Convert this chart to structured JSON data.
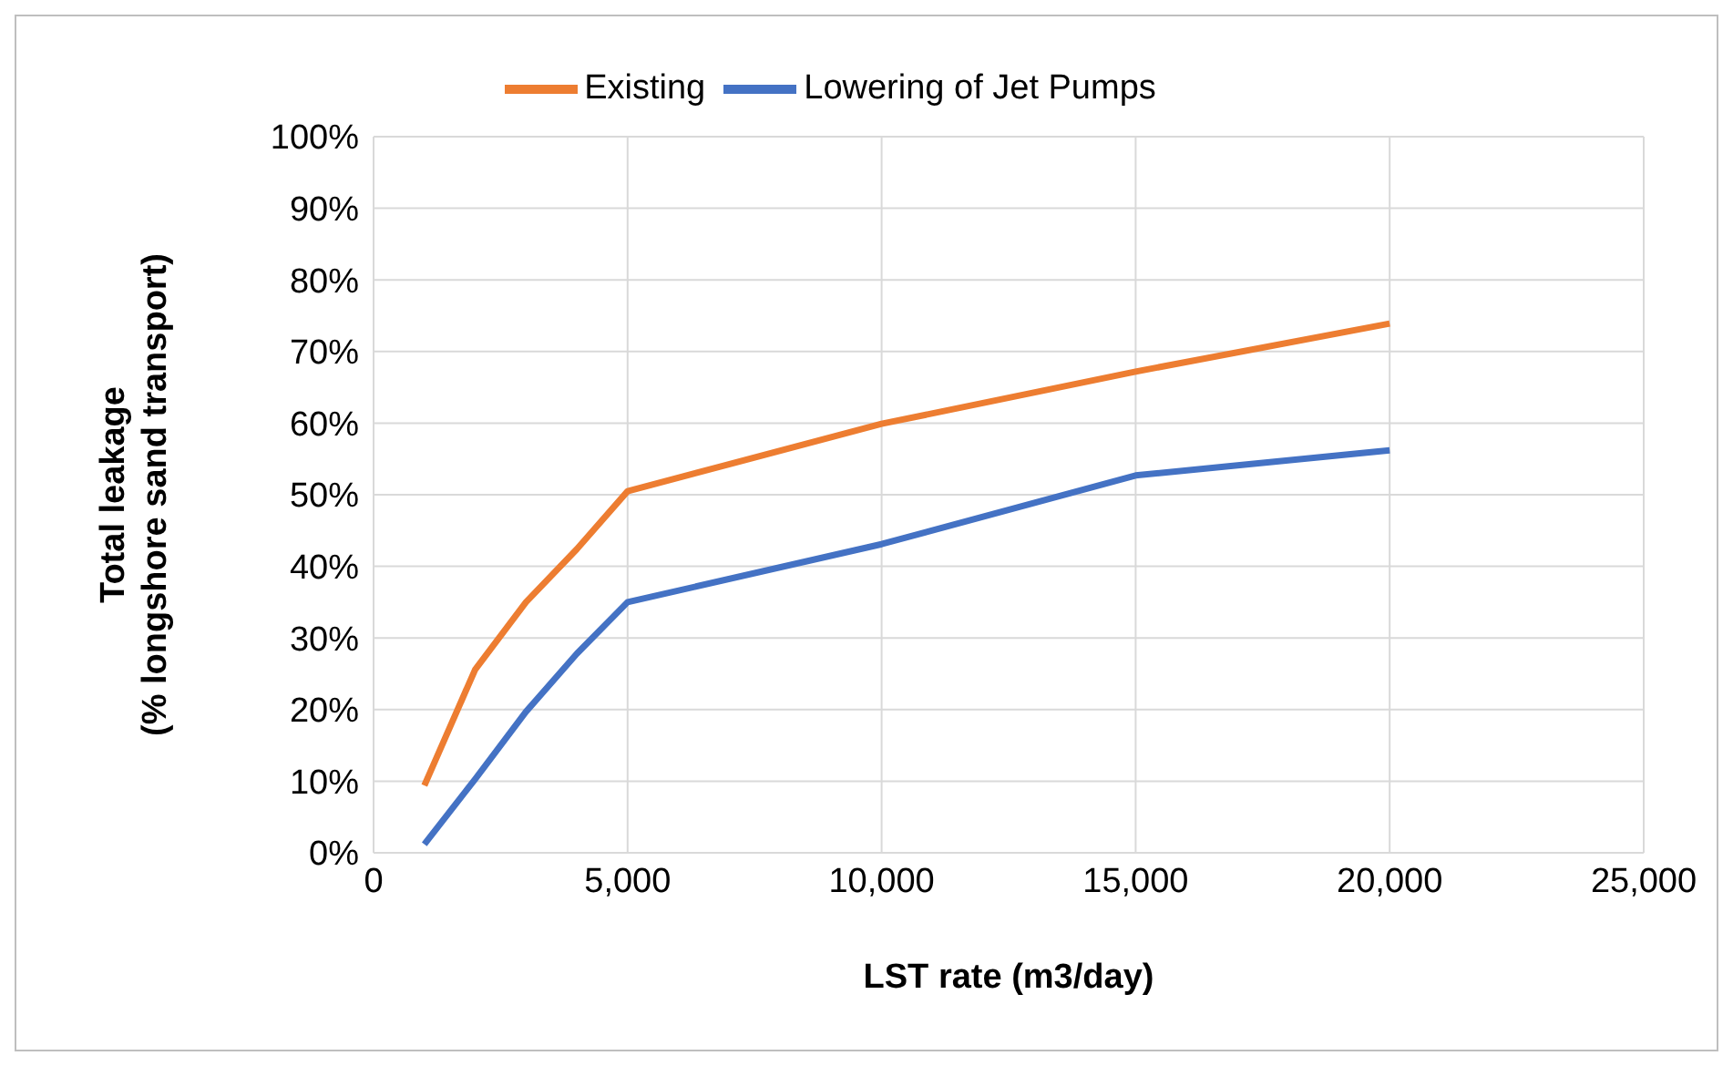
{
  "chart_data": {
    "type": "line",
    "xlabel": "LST rate (m3/day)",
    "ylabel": "Total leakage\n(% longshore sand transport)",
    "x": [
      1000,
      2000,
      3000,
      4000,
      5000,
      10000,
      15000,
      20000
    ],
    "series": [
      {
        "name": "Existing",
        "color": "#ed7d31",
        "values": [
          9.4,
          25.6,
          35,
          42.4,
          50.5,
          59.9,
          67.2,
          73.9
        ]
      },
      {
        "name": "Lowering of Jet Pumps",
        "color": "#4472c4",
        "values": [
          1.2,
          10.3,
          19.7,
          27.8,
          35,
          43.1,
          52.7,
          56.2
        ]
      }
    ],
    "xlim": [
      0,
      25000
    ],
    "xticks": [
      0,
      {
        "value": 5000,
        "label": "5,000"
      },
      {
        "value": 10000,
        "label": "10,000"
      },
      {
        "value": 15000,
        "label": "15,000"
      },
      {
        "value": 20000,
        "label": "20,000"
      },
      {
        "value": 25000,
        "label": "25,000"
      }
    ],
    "ylim": [
      0,
      100
    ],
    "yticks": [
      {
        "value": 0,
        "label": "0%"
      },
      {
        "value": 10,
        "label": "10%"
      },
      {
        "value": 20,
        "label": "20%"
      },
      {
        "value": 30,
        "label": "30%"
      },
      {
        "value": 40,
        "label": "40%"
      },
      {
        "value": 50,
        "label": "50%"
      },
      {
        "value": 60,
        "label": "60%"
      },
      {
        "value": 70,
        "label": "70%"
      },
      {
        "value": 80,
        "label": "80%"
      },
      {
        "value": 90,
        "label": "90%"
      },
      {
        "value": 100,
        "label": "100%"
      }
    ],
    "grid": true,
    "legend": "top",
    "marker": "none",
    "line_style": "solid"
  }
}
